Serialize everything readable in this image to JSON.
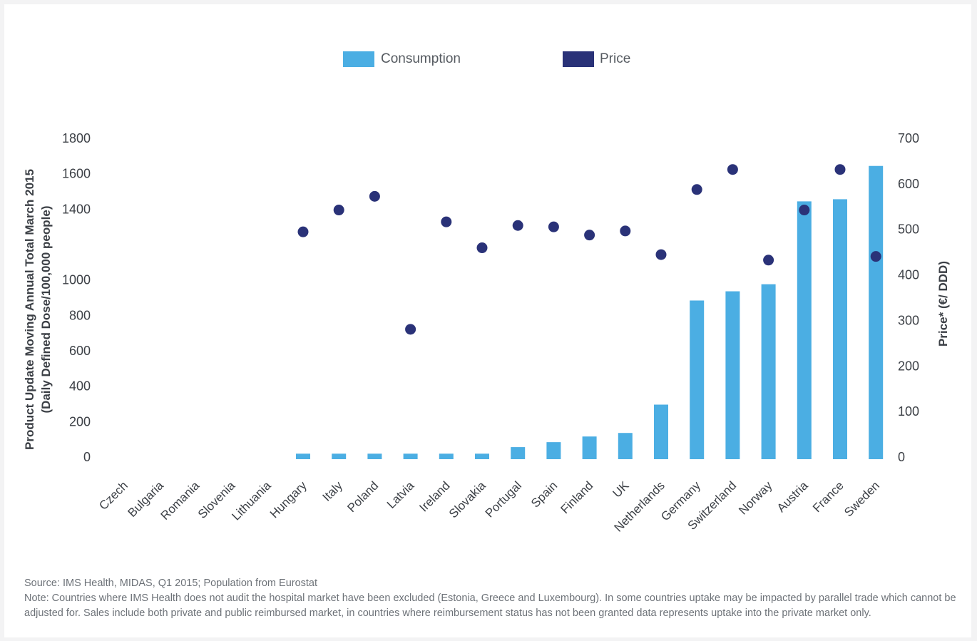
{
  "chart_data": {
    "type": "bar",
    "categories": [
      "Czech",
      "Bulgaria",
      "Romania",
      "Slovenia",
      "Lithuania",
      "Hungary",
      "Italy",
      "Poland",
      "Latvia",
      "Ireland",
      "Slovakia",
      "Portugal",
      "Spain",
      "Finland",
      "UK",
      "Netherlands",
      "Germany",
      "Switzerland",
      "Norway",
      "Austria",
      "France",
      "Sweden"
    ],
    "series": [
      {
        "name": "Consumption",
        "type": "bar",
        "axis": "left",
        "color": "#4baee3",
        "values": [
          null,
          null,
          null,
          null,
          null,
          15,
          15,
          15,
          15,
          15,
          15,
          52,
          80,
          112,
          132,
          292,
          880,
          932,
          972,
          1440,
          1452,
          1640
        ]
      },
      {
        "name": "Price",
        "type": "scatter",
        "axis": "right",
        "color": "#2a3278",
        "values": [
          null,
          null,
          null,
          null,
          null,
          493,
          541,
          571,
          279,
          515,
          458,
          507,
          504,
          486,
          495,
          443,
          586,
          630,
          431,
          541,
          630,
          439
        ]
      }
    ],
    "ylabel": "Product Update Moving Annual Total  March 2015 (Daily Defined Dose/100,000 people)",
    "ylabel_lines": [
      "Product Update Moving Annual Total  March 2015",
      "(Daily Defined Dose/100,000 people)"
    ],
    "y2label": "Price* (€/ DDD)",
    "ylim": [
      0,
      1800
    ],
    "yticks": [
      0,
      200,
      400,
      600,
      800,
      1000,
      1400,
      1600,
      1800
    ],
    "y2lim": [
      0,
      700
    ],
    "y2ticks": [
      0,
      100,
      200,
      300,
      400,
      500,
      600,
      700
    ],
    "legend_position": "top",
    "grid": false
  },
  "footer": {
    "source": "Source: IMS Health, MIDAS, Q1 2015; Population from Eurostat",
    "note": "Note: Countries where IMS Health does not audit the hospital market have been excluded (Estonia, Greece and Luxembourg). In some countries uptake may be impacted by parallel trade which cannot be adjusted for.  Sales include both private and public reimbursed market, in countries where reimbursement status has not been granted data represents uptake into the private market only."
  }
}
